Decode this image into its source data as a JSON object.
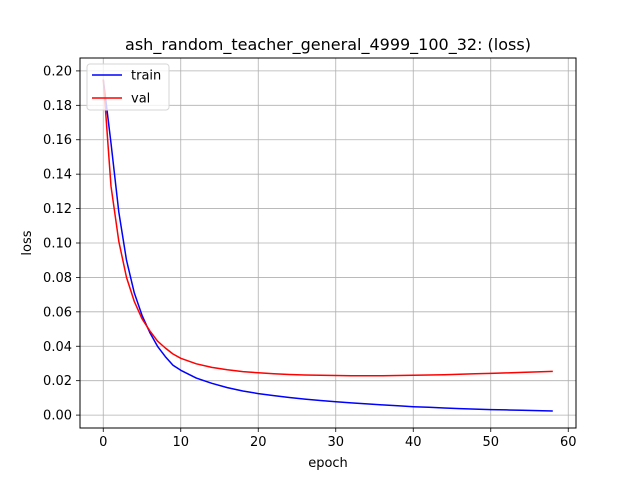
{
  "chart_data": {
    "type": "line",
    "title": "ash_random_teacher_general_4999_100_32: (loss)",
    "xlabel": "epoch",
    "ylabel": "loss",
    "xlim": [
      -3,
      61
    ],
    "ylim": [
      -0.0075,
      0.2075
    ],
    "xticks": [
      0,
      10,
      20,
      30,
      40,
      50,
      60
    ],
    "yticks": [
      0.0,
      0.02,
      0.04,
      0.06,
      0.08,
      0.1,
      0.12,
      0.14,
      0.16,
      0.18,
      0.2
    ],
    "ytick_labels": [
      "0.00",
      "0.02",
      "0.04",
      "0.06",
      "0.08",
      "0.10",
      "0.12",
      "0.14",
      "0.16",
      "0.18",
      "0.20"
    ],
    "grid": true,
    "legend_position": "top-left",
    "series": [
      {
        "name": "train",
        "color": "#0000ff",
        "x": [
          0,
          1,
          2,
          3,
          4,
          5,
          6,
          7,
          8,
          9,
          10,
          12,
          14,
          16,
          18,
          20,
          22,
          24,
          26,
          28,
          30,
          32,
          34,
          36,
          38,
          40,
          42,
          44,
          46,
          48,
          50,
          52,
          54,
          56,
          58
        ],
        "y": [
          0.195,
          0.158,
          0.118,
          0.09,
          0.071,
          0.058,
          0.048,
          0.04,
          0.034,
          0.029,
          0.026,
          0.0215,
          0.0185,
          0.016,
          0.014,
          0.0125,
          0.0113,
          0.0102,
          0.0093,
          0.0085,
          0.0078,
          0.0071,
          0.0065,
          0.0059,
          0.0054,
          0.0049,
          0.0045,
          0.0041,
          0.0038,
          0.0035,
          0.0032,
          0.003,
          0.0028,
          0.0026,
          0.0024
        ]
      },
      {
        "name": "val",
        "color": "#ff0000",
        "x": [
          0,
          1,
          2,
          3,
          4,
          5,
          6,
          7,
          8,
          9,
          10,
          12,
          14,
          16,
          18,
          20,
          22,
          24,
          26,
          28,
          30,
          32,
          34,
          36,
          38,
          40,
          42,
          44,
          46,
          48,
          50,
          52,
          54,
          56,
          58
        ],
        "y": [
          0.195,
          0.133,
          0.101,
          0.08,
          0.066,
          0.056,
          0.049,
          0.043,
          0.039,
          0.0355,
          0.033,
          0.0298,
          0.0277,
          0.0263,
          0.0253,
          0.0246,
          0.024,
          0.0236,
          0.0233,
          0.0231,
          0.023,
          0.0229,
          0.0229,
          0.0229,
          0.023,
          0.0231,
          0.0233,
          0.0235,
          0.0237,
          0.024,
          0.0242,
          0.0245,
          0.0248,
          0.0251,
          0.0254
        ]
      }
    ]
  }
}
